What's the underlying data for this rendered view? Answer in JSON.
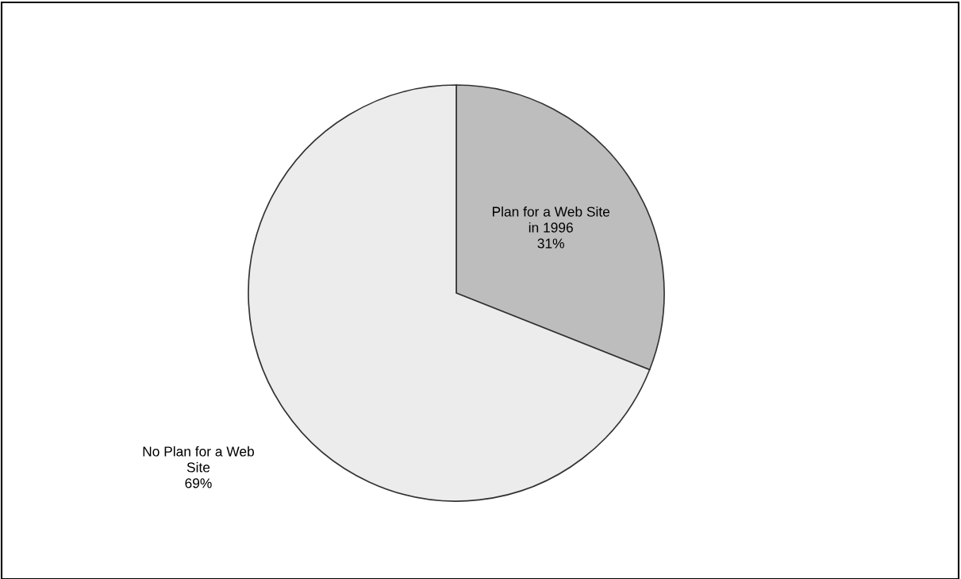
{
  "chart_data": {
    "type": "pie",
    "categories": [
      "Plan for a Web Site\nin 1996",
      "No Plan for a Web\nSite"
    ],
    "values": [
      31,
      69
    ],
    "colors": [
      "#bdbdbd",
      "#ececec"
    ],
    "value_labels": [
      "31%",
      "69%"
    ]
  }
}
